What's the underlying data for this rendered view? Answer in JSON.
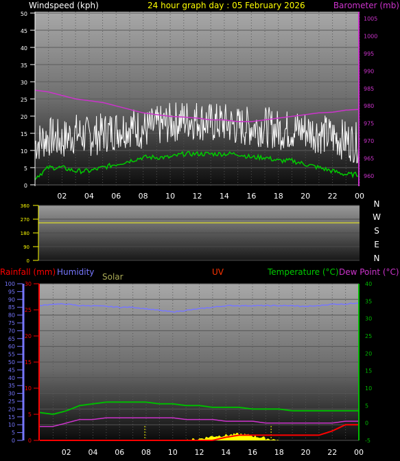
{
  "header": {
    "left_title": "Windspeed (kph)",
    "center_title": "24 hour graph day : 05 February 2026",
    "right_title": "Barometer (mb)"
  },
  "lower_labels": {
    "rainfall": "Rainfall (mm)",
    "humidity": "Humidity",
    "solar": "Solar",
    "uv": "UV",
    "temperature": "Temperature (°C)",
    "dewpoint": "Dew Point (°C)"
  },
  "compass_letters": [
    "N",
    "W",
    "S",
    "E",
    "N"
  ],
  "colors": {
    "wind": "#ffffff",
    "wind_avg": "#00cc00",
    "barometer": "#cc33cc",
    "direction": "#cccc33",
    "humidity": "#7777ff",
    "temperature": "#00bb00",
    "dewpoint": "#cc33cc",
    "rain": "#ff0000",
    "solar": "#ffff00",
    "solar_title": "#aaaa55",
    "uv": "#ff3300",
    "header_center": "#ffff00"
  },
  "chart_data": [
    {
      "type": "line",
      "name": "wind-barometer",
      "x_tick_labels": [
        "02",
        "04",
        "06",
        "08",
        "10",
        "12",
        "14",
        "16",
        "18",
        "20",
        "22",
        "00"
      ],
      "y_left_ticks": [
        0,
        5,
        10,
        15,
        20,
        25,
        30,
        35,
        40,
        45,
        50
      ],
      "ylim_left": [
        0,
        50
      ],
      "y_right_ticks": [
        960,
        965,
        970,
        975,
        980,
        985,
        990,
        995,
        1000,
        1005
      ],
      "ylim_right": [
        957,
        1007
      ],
      "x_hours": [
        0,
        1,
        2,
        3,
        4,
        5,
        6,
        7,
        8,
        9,
        10,
        11,
        12,
        13,
        14,
        15,
        16,
        17,
        18,
        19,
        20,
        21,
        22,
        23,
        24
      ],
      "series": [
        {
          "key": "gust",
          "values": [
            12,
            14,
            13,
            15,
            14,
            15,
            16,
            17,
            16,
            17,
            18,
            19,
            19,
            18,
            18,
            17,
            17,
            17,
            16,
            16,
            16,
            15,
            14,
            13,
            12
          ],
          "spread": 6
        },
        {
          "key": "avg",
          "values": [
            2,
            5,
            5,
            4,
            4,
            5,
            6,
            7,
            8,
            8,
            8,
            9,
            9,
            9,
            9,
            9,
            8,
            8,
            7,
            7,
            6,
            5,
            4,
            3,
            3
          ]
        },
        {
          "key": "baro",
          "values": [
            984.5,
            984,
            983,
            982,
            981.5,
            981,
            980,
            979,
            978,
            977.5,
            977,
            976.8,
            976.5,
            976,
            976,
            975.5,
            975.5,
            976,
            976.5,
            977,
            977.5,
            978,
            978.2,
            978.8,
            979
          ]
        }
      ]
    },
    {
      "type": "line",
      "name": "wind-direction",
      "y_ticks": [
        0,
        90,
        180,
        270,
        360
      ],
      "ylim": [
        0,
        360
      ],
      "series": [
        {
          "key": "direction",
          "values": [
            246,
            246
          ]
        }
      ]
    },
    {
      "type": "line",
      "name": "rain-humidity-temp",
      "x_tick_labels": [
        "02",
        "04",
        "06",
        "08",
        "10",
        "12",
        "14",
        "16",
        "18",
        "20",
        "22",
        "00"
      ],
      "x_hours": [
        0,
        1,
        2,
        3,
        4,
        5,
        6,
        7,
        8,
        9,
        10,
        11,
        12,
        13,
        14,
        15,
        16,
        17,
        18,
        19,
        20,
        21,
        22,
        23,
        24
      ],
      "humidity_ticks": [
        0,
        5,
        10,
        15,
        20,
        25,
        30,
        35,
        40,
        45,
        50,
        55,
        60,
        65,
        70,
        75,
        80,
        85,
        90,
        95,
        100
      ],
      "humidity_lim": [
        0,
        100
      ],
      "rain_ticks": [
        0,
        5,
        10,
        15,
        20,
        25,
        30
      ],
      "rain_lim": [
        0,
        30
      ],
      "temp_ticks": [
        -5,
        0,
        5,
        10,
        15,
        20,
        25,
        30,
        35,
        40
      ],
      "temp_lim": [
        -5,
        40
      ],
      "series": [
        {
          "key": "humidity",
          "values": [
            86,
            87,
            87,
            86,
            86,
            85.5,
            85,
            85,
            84,
            83,
            82,
            83,
            84,
            85,
            86,
            86,
            86,
            86,
            86,
            86,
            85.5,
            86,
            87,
            87,
            88
          ]
        },
        {
          "key": "temperature",
          "values": [
            3,
            2.5,
            3.5,
            5,
            5.5,
            6,
            6,
            6,
            6,
            5.5,
            5.5,
            5,
            5,
            4.5,
            4.5,
            4.5,
            4,
            4,
            4,
            3.5,
            3.5,
            3.5,
            3.5,
            3.5,
            3.5
          ]
        },
        {
          "key": "dewpoint",
          "values": [
            -1,
            -1,
            0,
            1,
            1,
            1.5,
            1.5,
            1.5,
            1.5,
            1.5,
            1.5,
            1,
            1,
            1,
            0.5,
            0.5,
            0.5,
            0,
            0,
            0,
            0,
            0,
            0,
            0.5,
            0.5
          ]
        },
        {
          "key": "rain",
          "values": [
            0,
            0,
            0,
            0,
            0,
            0,
            0,
            0,
            0,
            0,
            0,
            0,
            0,
            0,
            0.6,
            1,
            1,
            1,
            1,
            1,
            1,
            1,
            1.8,
            3,
            3
          ]
        },
        {
          "key": "solar",
          "values": [
            0,
            0,
            0,
            0,
            0,
            0,
            0,
            0,
            0,
            0,
            0,
            0,
            0.3,
            0.8,
            1.0,
            1.2,
            0.9,
            0.4,
            0,
            0,
            0,
            0,
            0,
            0,
            0
          ]
        }
      ]
    }
  ]
}
